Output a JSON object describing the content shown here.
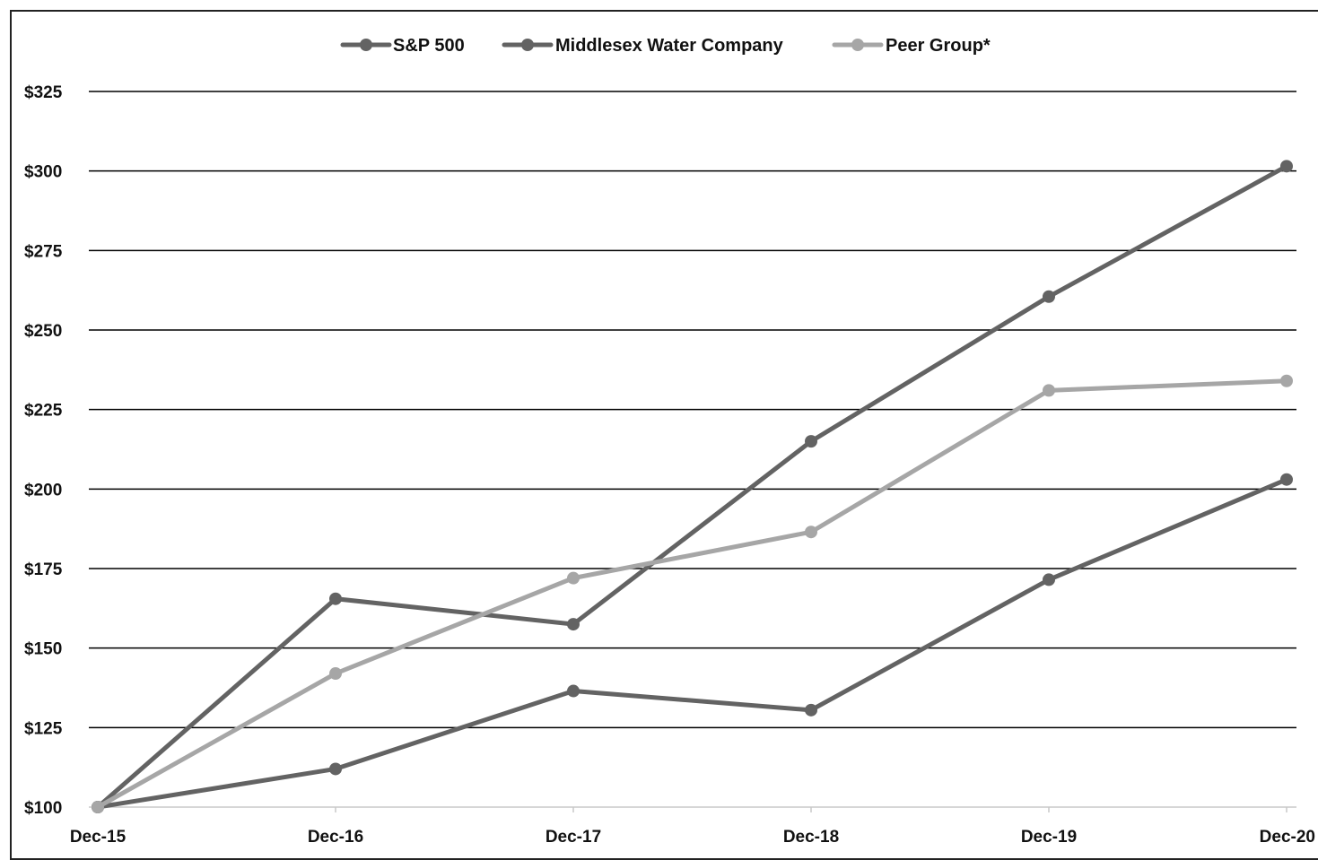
{
  "chart_data": {
    "type": "line",
    "categories": [
      "Dec-15",
      "Dec-16",
      "Dec-17",
      "Dec-18",
      "Dec-19",
      "Dec-20"
    ],
    "ylim": [
      100,
      325
    ],
    "yticks": [
      100,
      125,
      150,
      175,
      200,
      225,
      250,
      275,
      300,
      325
    ],
    "ytick_labels": [
      "$100",
      "$125",
      "$150",
      "$175",
      "$200",
      "$225",
      "$250",
      "$275",
      "$300",
      "$325"
    ],
    "grid": true,
    "legend_position": "top-center",
    "series": [
      {
        "name": "S&P 500",
        "color": "#636363",
        "values": [
          100,
          112,
          136.5,
          130.5,
          171.5,
          203
        ]
      },
      {
        "name": "Middlesex Water Company",
        "color": "#636363",
        "values": [
          100,
          165.5,
          157.5,
          215,
          260.5,
          301.5
        ]
      },
      {
        "name": "Peer Group*",
        "color": "#a6a6a6",
        "values": [
          100,
          142,
          172,
          186.5,
          231,
          234
        ]
      }
    ]
  }
}
